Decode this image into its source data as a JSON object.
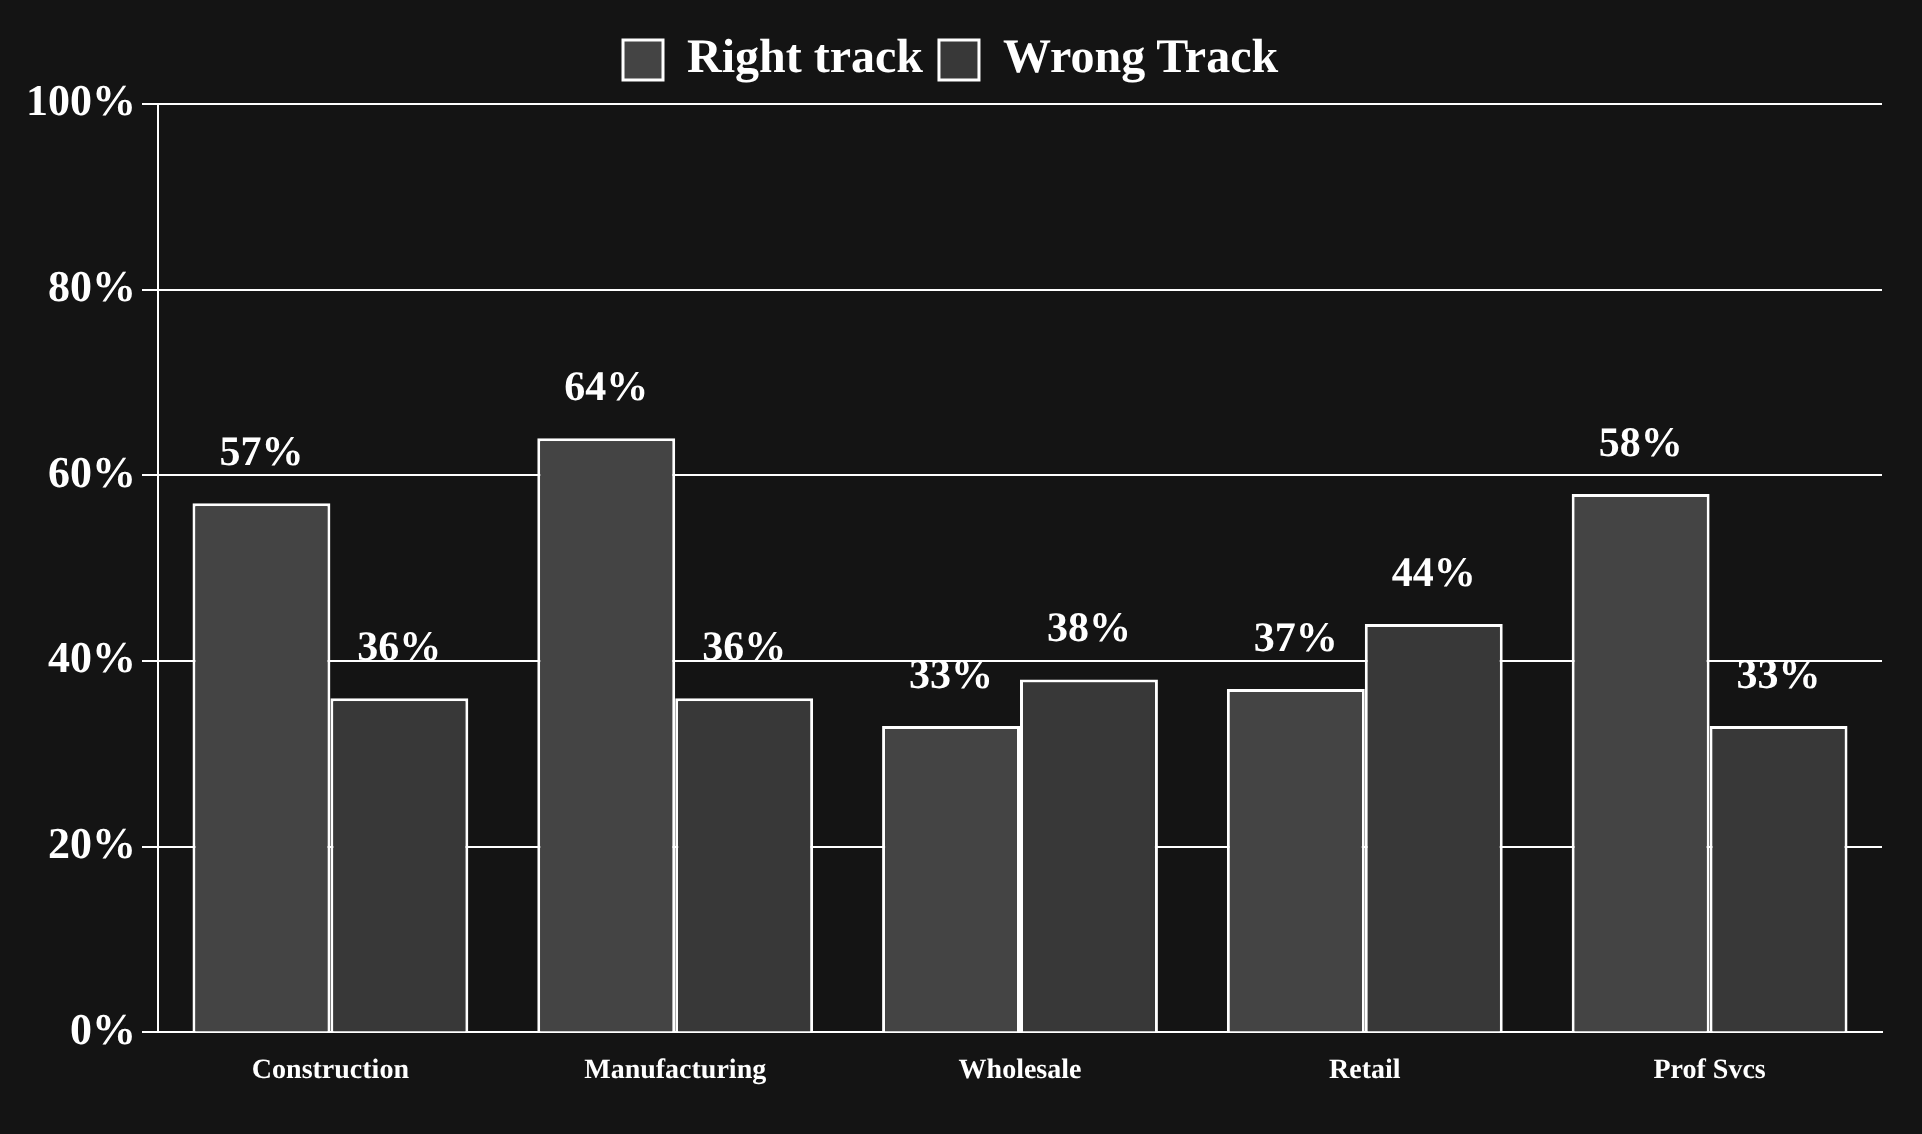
{
  "chart_data": {
    "type": "bar",
    "categories": [
      "Construction",
      "Manufacturing",
      "Wholesale",
      "Retail",
      "Prof Svcs"
    ],
    "series": [
      {
        "name": "Right track",
        "color": "#444444",
        "values": [
          57,
          64,
          33,
          37,
          58
        ],
        "value_labels": [
          "57%",
          "64%",
          "33%",
          "37%",
          "58%"
        ]
      },
      {
        "name": "Wrong Track",
        "color": "#383838",
        "values": [
          36,
          36,
          38,
          44,
          33
        ],
        "value_labels": [
          "36%",
          "36%",
          "38%",
          "44%",
          "33%"
        ]
      }
    ],
    "ylim": [
      0,
      100
    ],
    "yticks": [
      {
        "value": 0,
        "label": "0%"
      },
      {
        "value": 20,
        "label": "20%"
      },
      {
        "value": 40,
        "label": "40%"
      },
      {
        "value": 60,
        "label": "60%"
      },
      {
        "value": 80,
        "label": "80%"
      },
      {
        "value": 100,
        "label": "100%"
      }
    ],
    "grid": "y",
    "legend": "top"
  }
}
